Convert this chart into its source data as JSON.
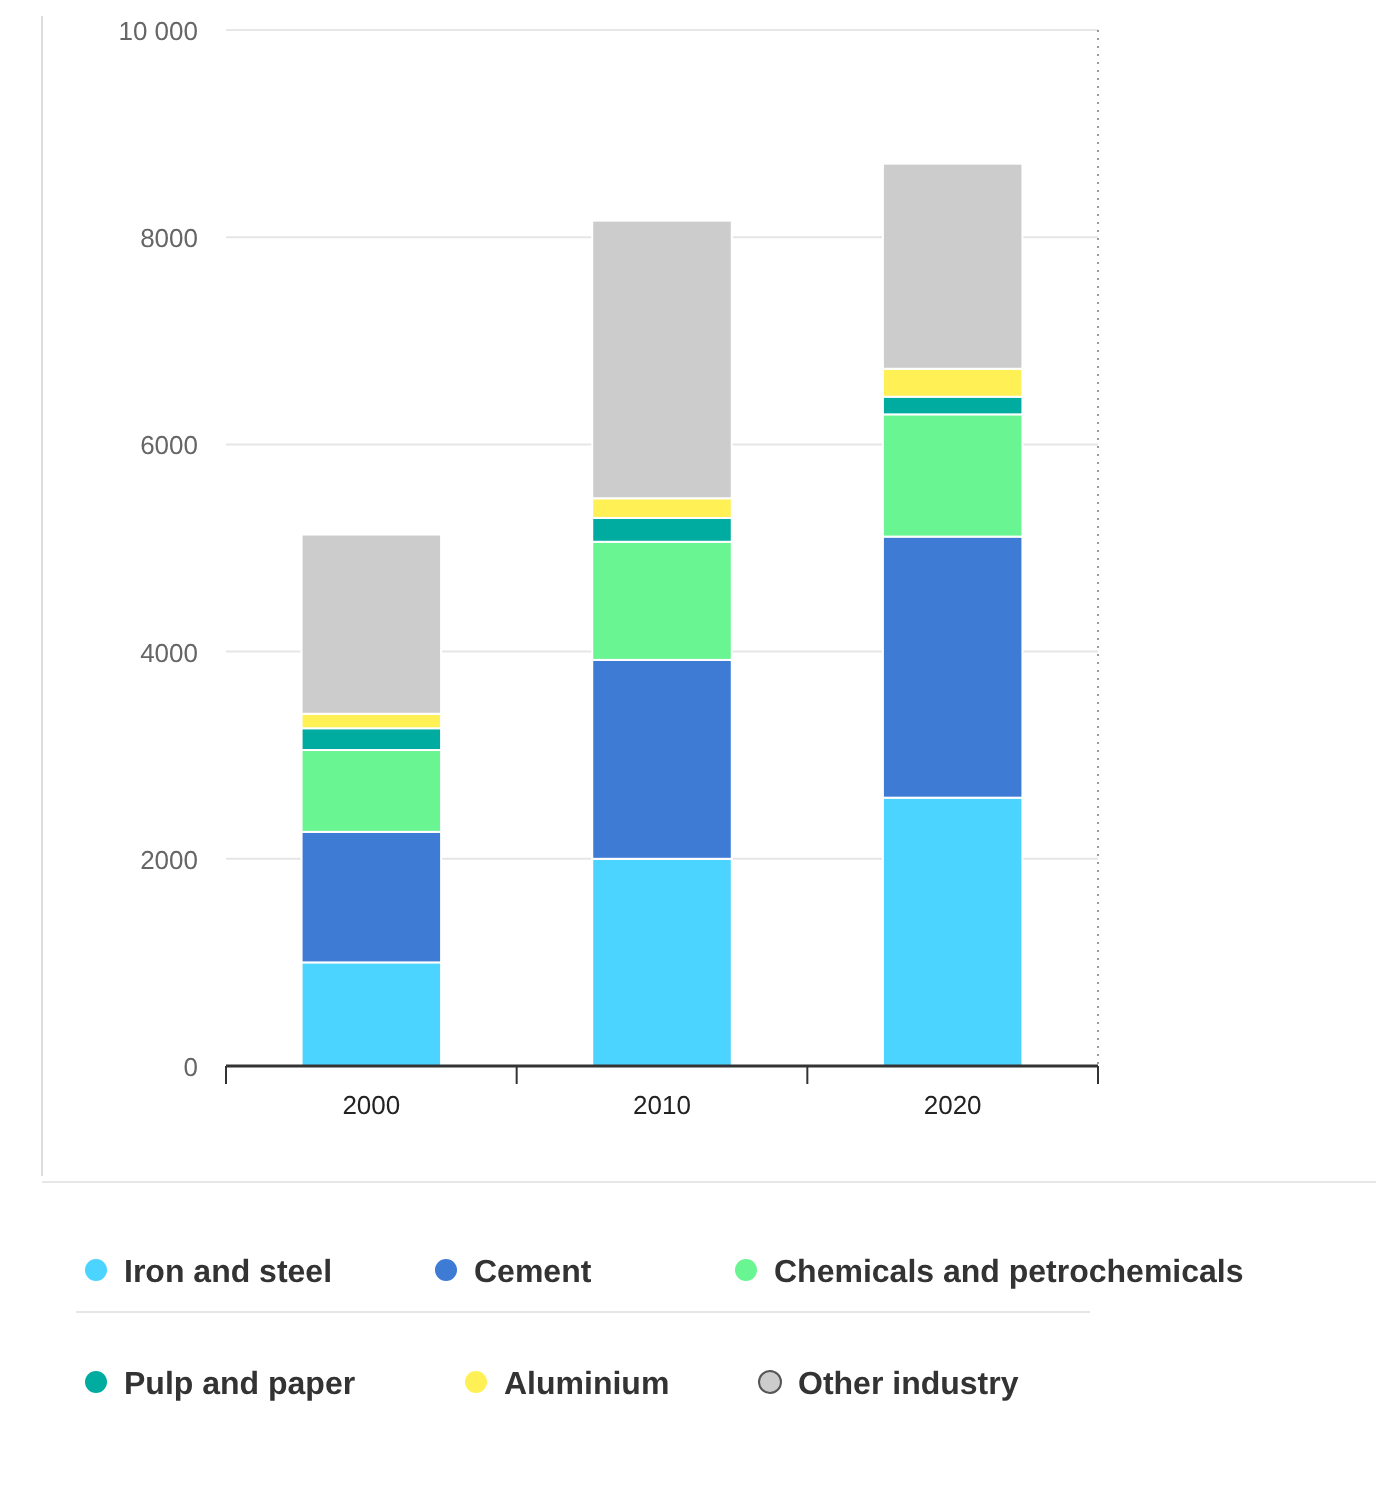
{
  "chart_data": {
    "type": "bar",
    "stacked": true,
    "categories": [
      "2000",
      "2010",
      "2020"
    ],
    "series": [
      {
        "name": "Iron and steel",
        "color": "#4ad4ff",
        "values": [
          1000,
          2000,
          2590
        ]
      },
      {
        "name": "Cement",
        "color": "#3e7bd4",
        "values": [
          1260,
          1920,
          2520
        ]
      },
      {
        "name": "Chemicals and petrochemicals",
        "color": "#69f591",
        "values": [
          790,
          1140,
          1180
        ]
      },
      {
        "name": "Pulp and paper",
        "color": "#00ab9f",
        "values": [
          210,
          230,
          170
        ]
      },
      {
        "name": "Aluminium",
        "color": "#fff056",
        "values": [
          140,
          190,
          270
        ]
      },
      {
        "name": "Other industry",
        "color": "#cccccc",
        "values": [
          1730,
          2680,
          1980
        ]
      }
    ],
    "ylim": [
      0,
      10000
    ],
    "yticks": [
      0,
      2000,
      4000,
      6000,
      8000,
      {
        "value": 10000,
        "label": "10 000"
      }
    ],
    "grid": "y",
    "legend": "bottom"
  }
}
